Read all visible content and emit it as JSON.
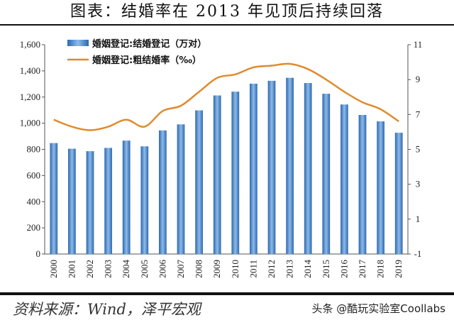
{
  "title": "图表：结婚率在 2013 年见顶后持续回落",
  "source": "资料来源：Wind，泽平宏观",
  "watermark": "头条 @酷玩实验室Coollabs",
  "colors": {
    "bar": "#3f7fc4",
    "line": "#e08a2e"
  },
  "chart_data": {
    "type": "bar+line",
    "categories": [
      "2000",
      "2001",
      "2002",
      "2003",
      "2004",
      "2005",
      "2006",
      "2007",
      "2008",
      "2009",
      "2010",
      "2011",
      "2012",
      "2013",
      "2014",
      "2015",
      "2016",
      "2017",
      "2018",
      "2019"
    ],
    "series": [
      {
        "name": "婚姻登记:结婚登记（万对）",
        "type": "bar",
        "axis": "left",
        "values": [
          848,
          805,
          786,
          811,
          867,
          823,
          945,
          991,
          1098,
          1212,
          1241,
          1302,
          1324,
          1347,
          1307,
          1225,
          1143,
          1063,
          1014,
          927
        ]
      },
      {
        "name": "婚姻登记:粗结婚率（‰）",
        "type": "line",
        "axis": "right",
        "values": [
          6.7,
          6.3,
          6.1,
          6.3,
          6.7,
          6.3,
          7.2,
          7.5,
          8.3,
          9.1,
          9.3,
          9.7,
          9.8,
          9.9,
          9.6,
          9.0,
          8.3,
          7.7,
          7.3,
          6.6
        ]
      }
    ],
    "yleft": {
      "range": [
        0,
        1600
      ],
      "ticks": [
        "0",
        "200",
        "400",
        "600",
        "800",
        "1,000",
        "1,200",
        "1,400",
        "1,600"
      ]
    },
    "yright": {
      "range": [
        -1,
        11
      ],
      "ticks": [
        "-1",
        "1",
        "3",
        "5",
        "7",
        "9",
        "11"
      ]
    },
    "grid": false,
    "legend": "top-left"
  }
}
